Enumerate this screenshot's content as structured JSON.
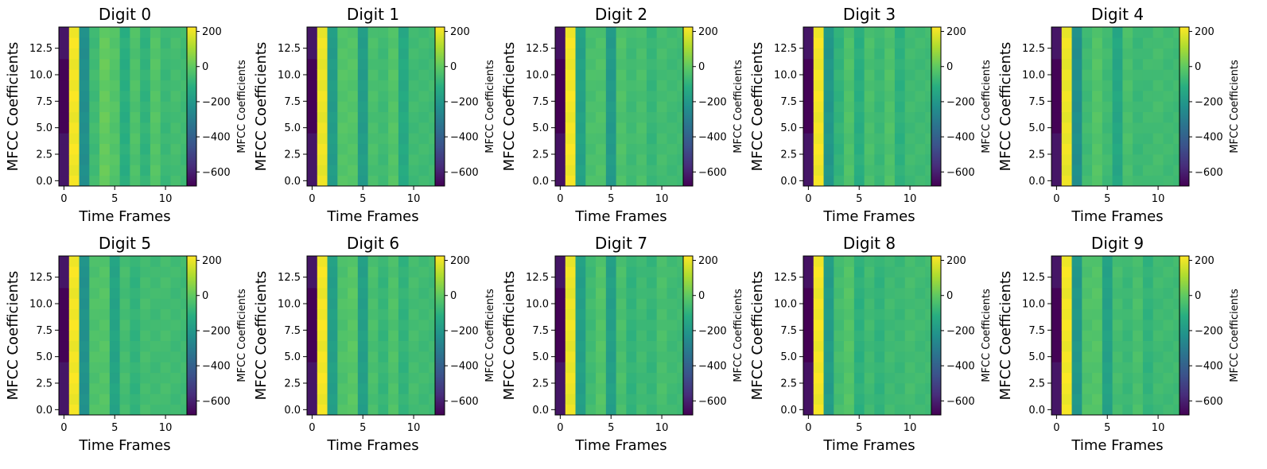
{
  "figure": {
    "colormap": "viridis",
    "colorbar": {
      "label": "MFCC Coefficients",
      "vmin": -680,
      "vmax": 225,
      "ticks": [
        200,
        0,
        -200,
        -400,
        -600
      ],
      "tick_labels": [
        "200",
        "0",
        "−200",
        "−400",
        "−600"
      ]
    }
  },
  "chart_data": [
    {
      "type": "heatmap",
      "title": "Digit 0",
      "xlabel": "Time Frames",
      "ylabel": "MFCC Coefficients",
      "x_tick_labels": [
        "0",
        "5",
        "10"
      ],
      "y_tick_labels": [
        "0.0",
        "2.5",
        "5.0",
        "7.5",
        "10.0",
        "12.5"
      ],
      "x_range": [
        -0.5,
        12.5
      ],
      "y_range": [
        -0.5,
        14.5
      ],
      "column_values": [
        -640,
        210,
        -230,
        -60,
        10,
        -20,
        -110,
        -30,
        -90,
        -20,
        -70,
        -50,
        -60
      ]
    },
    {
      "type": "heatmap",
      "title": "Digit 1",
      "xlabel": "Time Frames",
      "ylabel": "MFCC Coefficients",
      "x_tick_labels": [
        "0",
        "5",
        "10"
      ],
      "y_tick_labels": [
        "0.0",
        "2.5",
        "5.0",
        "7.5",
        "10.0",
        "12.5"
      ],
      "x_range": [
        -0.5,
        12.5
      ],
      "y_range": [
        -0.5,
        14.5
      ],
      "column_values": [
        -640,
        200,
        -180,
        -20,
        -20,
        -180,
        -40,
        -60,
        -20,
        -130,
        -60,
        -60,
        -60
      ]
    },
    {
      "type": "heatmap",
      "title": "Digit 2",
      "xlabel": "Time Frames",
      "ylabel": "MFCC Coefficients",
      "x_tick_labels": [
        "0",
        "5",
        "10"
      ],
      "y_tick_labels": [
        "0.0",
        "2.5",
        "5.0",
        "7.5",
        "10.0",
        "12.5"
      ],
      "x_range": [
        -0.5,
        12.5
      ],
      "y_range": [
        -0.5,
        14.5
      ],
      "column_values": [
        -650,
        210,
        -160,
        -40,
        -30,
        -190,
        -30,
        -60,
        -40,
        -80,
        -50,
        -60,
        -60
      ]
    },
    {
      "type": "heatmap",
      "title": "Digit 3",
      "xlabel": "Time Frames",
      "ylabel": "MFCC Coefficients",
      "x_tick_labels": [
        "0",
        "5",
        "10"
      ],
      "y_tick_labels": [
        "0.0",
        "2.5",
        "5.0",
        "7.5",
        "10.0",
        "12.5"
      ],
      "x_range": [
        -0.5,
        12.5
      ],
      "y_range": [
        -0.5,
        14.5
      ],
      "column_values": [
        -640,
        210,
        -200,
        -90,
        -30,
        -110,
        -40,
        -70,
        -30,
        -100,
        -60,
        -60,
        -60
      ]
    },
    {
      "type": "heatmap",
      "title": "Digit 4",
      "xlabel": "Time Frames",
      "ylabel": "MFCC Coefficients",
      "x_tick_labels": [
        "0",
        "5",
        "10"
      ],
      "y_tick_labels": [
        "0.0",
        "2.5",
        "5.0",
        "7.5",
        "10.0",
        "12.5"
      ],
      "x_range": [
        -0.5,
        12.5
      ],
      "y_range": [
        -0.5,
        14.5
      ],
      "column_values": [
        -640,
        200,
        -230,
        -60,
        -20,
        -60,
        -140,
        -40,
        -70,
        -60,
        -50,
        -60,
        -60
      ]
    },
    {
      "type": "heatmap",
      "title": "Digit 5",
      "xlabel": "Time Frames",
      "ylabel": "MFCC Coefficients",
      "x_tick_labels": [
        "0",
        "5",
        "10"
      ],
      "y_tick_labels": [
        "0.0",
        "2.5",
        "5.0",
        "7.5",
        "10.0",
        "12.5"
      ],
      "x_range": [
        -0.5,
        12.5
      ],
      "y_range": [
        -0.5,
        14.5
      ],
      "column_values": [
        -640,
        210,
        -220,
        -30,
        -20,
        -150,
        -50,
        -90,
        -50,
        -60,
        -50,
        -60,
        -60
      ]
    },
    {
      "type": "heatmap",
      "title": "Digit 6",
      "xlabel": "Time Frames",
      "ylabel": "MFCC Coefficients",
      "x_tick_labels": [
        "0",
        "5",
        "10"
      ],
      "y_tick_labels": [
        "0.0",
        "2.5",
        "5.0",
        "7.5",
        "10.0",
        "12.5"
      ],
      "x_range": [
        -0.5,
        12.5
      ],
      "y_range": [
        -0.5,
        14.5
      ],
      "column_values": [
        -640,
        210,
        -170,
        -30,
        -10,
        -170,
        -40,
        -80,
        -30,
        -90,
        -50,
        -60,
        -60
      ]
    },
    {
      "type": "heatmap",
      "title": "Digit 7",
      "xlabel": "Time Frames",
      "ylabel": "MFCC Coefficients",
      "x_tick_labels": [
        "0",
        "5",
        "10"
      ],
      "y_tick_labels": [
        "0.0",
        "2.5",
        "5.0",
        "7.5",
        "10.0",
        "12.5"
      ],
      "x_range": [
        -0.5,
        12.5
      ],
      "y_range": [
        -0.5,
        14.5
      ],
      "column_values": [
        -640,
        200,
        -170,
        -60,
        -20,
        -170,
        -40,
        -90,
        -60,
        -80,
        -40,
        -60,
        -60
      ]
    },
    {
      "type": "heatmap",
      "title": "Digit 8",
      "xlabel": "Time Frames",
      "ylabel": "MFCC Coefficients",
      "x_tick_labels": [
        "0",
        "5",
        "10"
      ],
      "y_tick_labels": [
        "0.0",
        "2.5",
        "5.0",
        "7.5",
        "10.0",
        "12.5"
      ],
      "x_range": [
        -0.5,
        12.5
      ],
      "y_range": [
        -0.5,
        14.5
      ],
      "column_values": [
        -650,
        210,
        -180,
        -50,
        -20,
        -100,
        -60,
        -90,
        -60,
        -70,
        -50,
        -60,
        -60
      ]
    },
    {
      "type": "heatmap",
      "title": "Digit 9",
      "xlabel": "Time Frames",
      "ylabel": "MFCC Coefficients",
      "x_tick_labels": [
        "0",
        "5",
        "10"
      ],
      "y_tick_labels": [
        "0.0",
        "2.5",
        "5.0",
        "7.5",
        "10.0",
        "12.5"
      ],
      "x_range": [
        -0.5,
        12.5
      ],
      "y_range": [
        -0.5,
        14.5
      ],
      "column_values": [
        -640,
        210,
        -200,
        -30,
        -20,
        -160,
        -50,
        -70,
        -40,
        -90,
        -60,
        -60,
        -60
      ]
    }
  ]
}
